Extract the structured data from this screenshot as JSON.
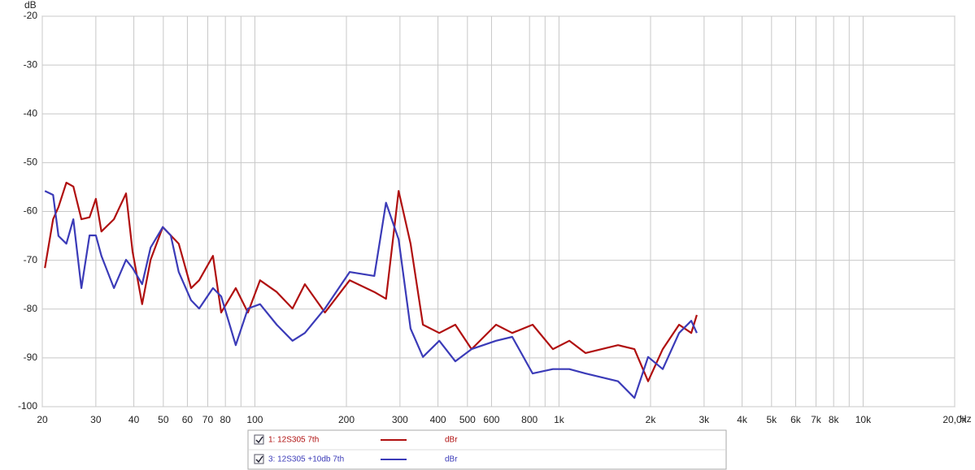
{
  "chart_data": {
    "type": "line",
    "x_log": true,
    "grid": true,
    "y_unit": "dB",
    "x_unit": "Hz",
    "x": [
      20.4,
      21.7,
      22.6,
      24.0,
      25.3,
      26.9,
      28.6,
      30.0,
      31.3,
      34.4,
      37.7,
      39.6,
      42.6,
      45.4,
      49.8,
      52.9,
      56.2,
      61.7,
      65.6,
      72.8,
      77.5,
      86.5,
      94.9,
      104,
      118,
      133,
      146,
      170,
      205,
      247,
      270,
      297,
      325,
      357,
      404,
      456,
      516,
      621,
      702,
      819,
      955,
      1081,
      1222,
      1563,
      1770,
      1963,
      2193,
      2482,
      2723,
      2839
    ],
    "series": [
      {
        "name": "1: 12S305 7th",
        "unit": "dBr",
        "color": "#b01010",
        "values": [
          -71.6,
          -61.6,
          -59.1,
          -54.1,
          -54.9,
          -61.6,
          -61.2,
          -57.4,
          -64.1,
          -61.6,
          -56.3,
          -68.2,
          -79.0,
          -69.9,
          -63.2,
          -64.9,
          -66.6,
          -75.7,
          -74.1,
          -69.1,
          -80.7,
          -75.7,
          -80.7,
          -74.1,
          -76.5,
          -79.9,
          -74.9,
          -80.7,
          -74.1,
          -76.5,
          -77.9,
          -55.8,
          -66.6,
          -83.2,
          -84.9,
          -83.2,
          -88.2,
          -83.2,
          -84.9,
          -83.2,
          -88.2,
          -86.5,
          -89.0,
          -87.4,
          -88.2,
          -94.8,
          -88.2,
          -83.2,
          -84.9,
          -81.2
        ]
      },
      {
        "name": "3: 12S305 +10db 7th",
        "unit": "dBr",
        "color": "#3b3bb8",
        "values": [
          -55.8,
          -56.6,
          -65.0,
          -66.6,
          -61.6,
          -75.7,
          -64.9,
          -64.9,
          -69.1,
          -75.7,
          -69.9,
          -71.6,
          -74.9,
          -67.4,
          -63.2,
          -64.9,
          -72.4,
          -78.2,
          -79.9,
          -75.7,
          -77.4,
          -87.4,
          -79.9,
          -79.0,
          -83.2,
          -86.5,
          -84.9,
          -79.9,
          -72.4,
          -73.2,
          -58.2,
          -65.7,
          -84.0,
          -89.8,
          -86.5,
          -90.7,
          -88.2,
          -86.5,
          -85.7,
          -93.2,
          -92.3,
          -92.3,
          -93.2,
          -94.8,
          -98.2,
          -89.8,
          -92.3,
          -84.9,
          -82.4,
          -84.9
        ]
      }
    ],
    "xlim": [
      20,
      20000
    ],
    "ylim": [
      -100,
      -20
    ],
    "yticks": [
      -20,
      -30,
      -40,
      -50,
      -60,
      -70,
      -80,
      -90,
      -100
    ],
    "xticks": [
      20,
      30,
      40,
      50,
      60,
      70,
      80,
      100,
      200,
      300,
      400,
      500,
      600,
      800,
      {
        "value": 1000,
        "label": "1k"
      },
      {
        "value": 2000,
        "label": "2k"
      },
      {
        "value": 3000,
        "label": "3k"
      },
      {
        "value": 4000,
        "label": "4k"
      },
      {
        "value": 5000,
        "label": "5k"
      },
      {
        "value": 6000,
        "label": "6k"
      },
      {
        "value": 7000,
        "label": "7k"
      },
      {
        "value": 8000,
        "label": "8k"
      },
      {
        "value": 10000,
        "label": "10k"
      },
      {
        "value": 20000,
        "label": "20,0k"
      }
    ],
    "minor_xticks": [
      90,
      900,
      9000
    ]
  }
}
